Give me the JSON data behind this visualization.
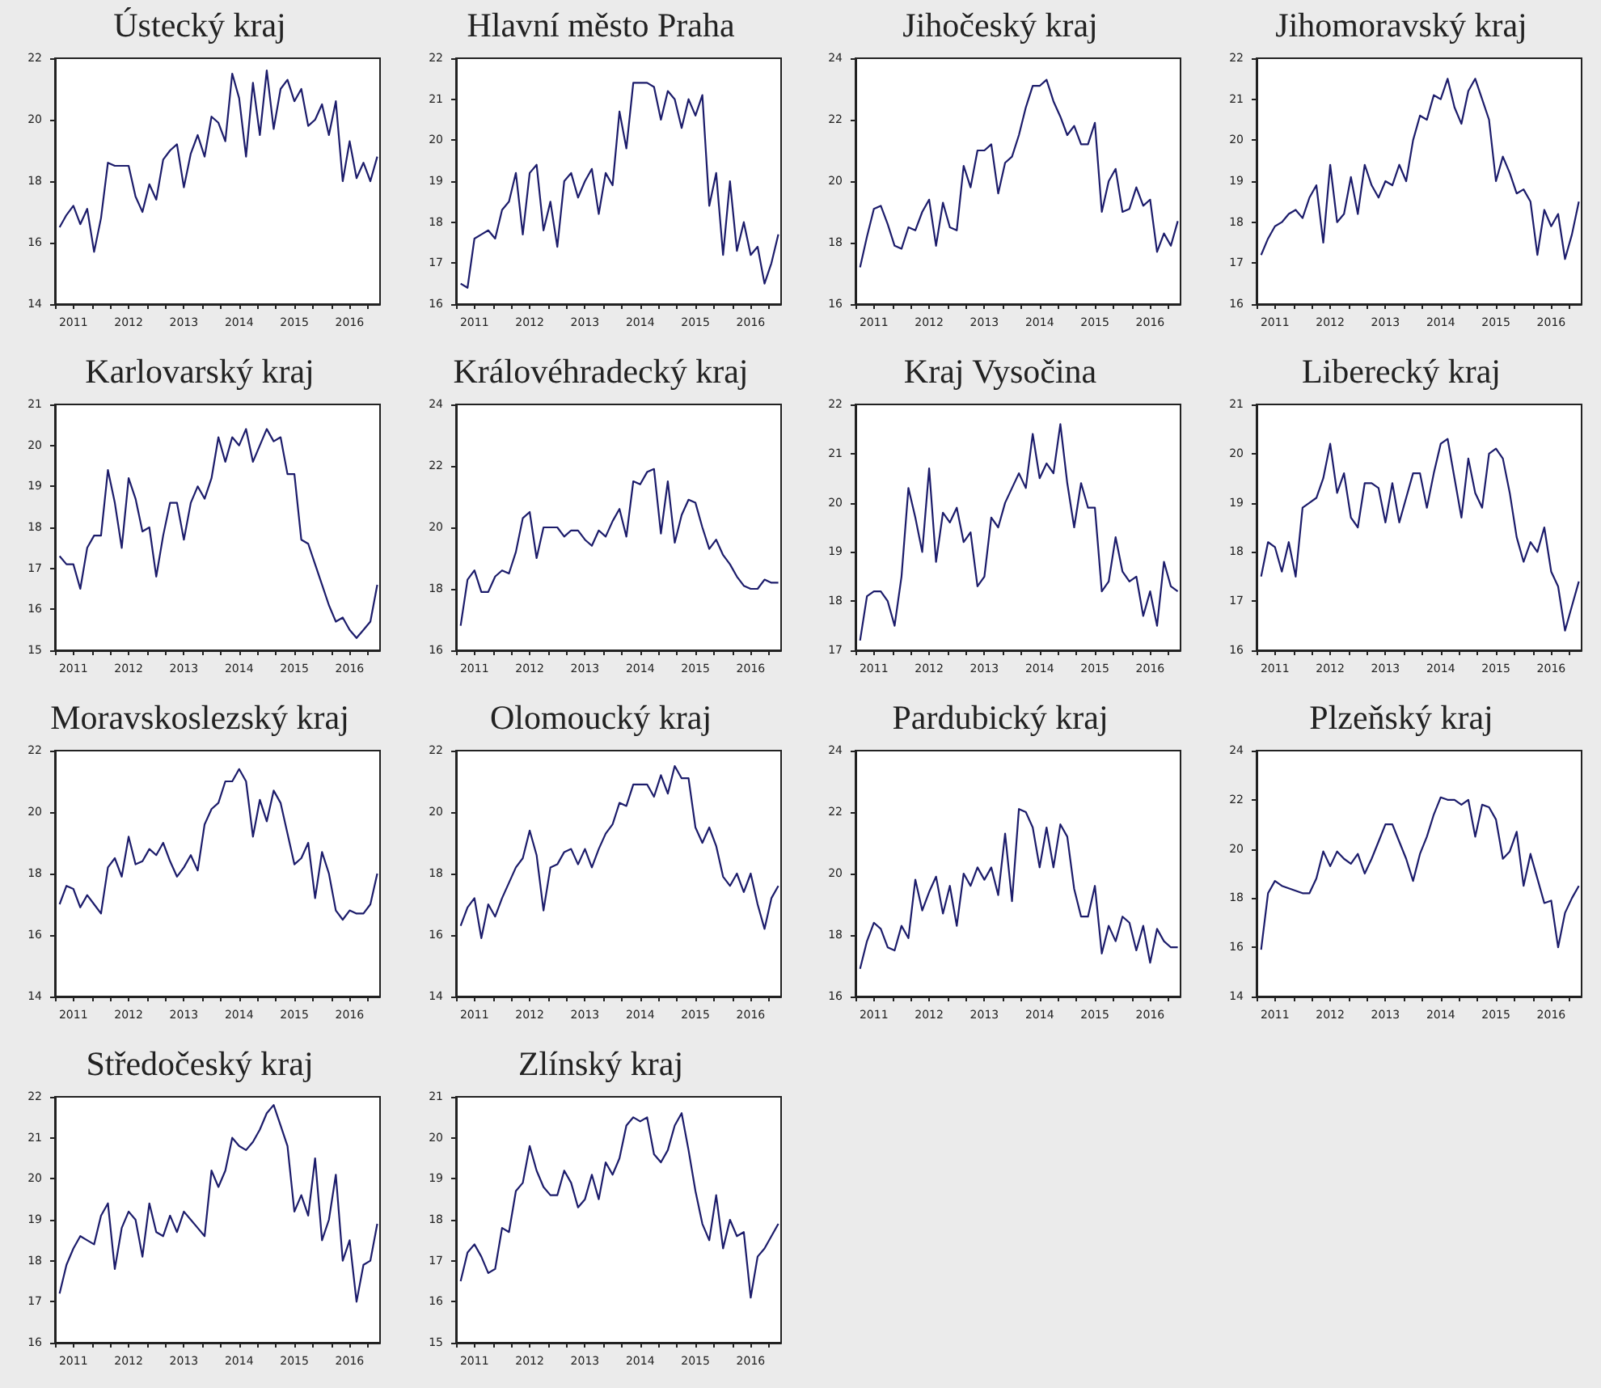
{
  "chart_data": [
    {
      "type": "line",
      "title": "Ústecký kraj",
      "color": "#1c1c6b",
      "xlim": [
        2010.667,
        2016.55
      ],
      "ylim": [
        14,
        22
      ],
      "yticks": [
        14,
        16,
        18,
        20,
        22
      ],
      "xticks": [
        {
          "value": 2010.667,
          "label": null
        },
        2011,
        {
          "value": 2011.333,
          "label": null
        },
        {
          "value": 2011.667,
          "label": null
        },
        2012,
        {
          "value": 2012.333,
          "label": null
        },
        {
          "value": 2012.667,
          "label": null
        },
        2013,
        {
          "value": 2013.333,
          "label": null
        },
        {
          "value": 2013.667,
          "label": null
        },
        2014,
        {
          "value": 2014.333,
          "label": null
        },
        {
          "value": 2014.667,
          "label": null
        },
        2015,
        {
          "value": 2015.333,
          "label": null
        },
        {
          "value": 2015.667,
          "label": null
        },
        2016,
        {
          "value": 2016.333,
          "label": null
        }
      ],
      "x": [
        2010.75,
        2010.875,
        2011,
        2011.125,
        2011.25,
        2011.375,
        2011.5,
        2011.625,
        2011.75,
        2011.875,
        2012,
        2012.125,
        2012.25,
        2012.375,
        2012.5,
        2012.625,
        2012.75,
        2012.875,
        2013,
        2013.125,
        2013.25,
        2013.375,
        2013.5,
        2013.625,
        2013.75,
        2013.875,
        2014,
        2014.125,
        2014.25,
        2014.375,
        2014.5,
        2014.625,
        2014.75,
        2014.875,
        2015,
        2015.125,
        2015.25,
        2015.375,
        2015.5,
        2015.625,
        2015.75,
        2015.875,
        2016,
        2016.125,
        2016.25,
        2016.375,
        2016.5
      ],
      "values": [
        16.5,
        16.9,
        17.2,
        16.6,
        17.1,
        15.7,
        16.8,
        18.6,
        18.5,
        18.5,
        18.5,
        17.5,
        17.0,
        17.9,
        17.4,
        18.7,
        19.0,
        19.2,
        17.8,
        18.9,
        19.5,
        18.8,
        20.1,
        19.9,
        19.3,
        21.5,
        20.7,
        18.8,
        21.2,
        19.5,
        21.6,
        19.7,
        21.0,
        21.3,
        20.6,
        21.0,
        19.8,
        20.0,
        20.5,
        19.5,
        20.6,
        18.0,
        19.3,
        18.1,
        18.6,
        18.0,
        18.8
      ]
    },
    {
      "type": "line",
      "title": "Hlavní město Praha",
      "color": "#1c1c6b",
      "xlim": [
        2010.667,
        2016.55
      ],
      "ylim": [
        16,
        22
      ],
      "yticks": [
        16,
        17,
        18,
        19,
        20,
        21,
        22
      ],
      "xticks": [
        {
          "value": 2010.667,
          "label": null
        },
        2011,
        {
          "value": 2011.333,
          "label": null
        },
        {
          "value": 2011.667,
          "label": null
        },
        2012,
        {
          "value": 2012.333,
          "label": null
        },
        {
          "value": 2012.667,
          "label": null
        },
        2013,
        {
          "value": 2013.333,
          "label": null
        },
        {
          "value": 2013.667,
          "label": null
        },
        2014,
        {
          "value": 2014.333,
          "label": null
        },
        {
          "value": 2014.667,
          "label": null
        },
        2015,
        {
          "value": 2015.333,
          "label": null
        },
        {
          "value": 2015.667,
          "label": null
        },
        2016,
        {
          "value": 2016.333,
          "label": null
        }
      ],
      "x": [
        2010.75,
        2010.875,
        2011,
        2011.125,
        2011.25,
        2011.375,
        2011.5,
        2011.625,
        2011.75,
        2011.875,
        2012,
        2012.125,
        2012.25,
        2012.375,
        2012.5,
        2012.625,
        2012.75,
        2012.875,
        2013,
        2013.125,
        2013.25,
        2013.375,
        2013.5,
        2013.625,
        2013.75,
        2013.875,
        2014,
        2014.125,
        2014.25,
        2014.375,
        2014.5,
        2014.625,
        2014.75,
        2014.875,
        2015,
        2015.125,
        2015.25,
        2015.375,
        2015.5,
        2015.625,
        2015.75,
        2015.875,
        2016,
        2016.125,
        2016.25,
        2016.375,
        2016.5
      ],
      "values": [
        16.5,
        16.4,
        17.6,
        17.7,
        17.8,
        17.6,
        18.3,
        18.5,
        19.2,
        17.7,
        19.2,
        19.4,
        17.8,
        18.5,
        17.4,
        19.0,
        19.2,
        18.6,
        19.0,
        19.3,
        18.2,
        19.2,
        18.9,
        20.7,
        19.8,
        21.4,
        21.4,
        21.4,
        21.3,
        20.5,
        21.2,
        21.0,
        20.3,
        21.0,
        20.6,
        21.1,
        18.4,
        19.2,
        17.2,
        19.0,
        17.3,
        18.0,
        17.2,
        17.4,
        16.5,
        17.0,
        17.7
      ]
    },
    {
      "type": "line",
      "title": "Jihočeský kraj",
      "color": "#1c1c6b",
      "xlim": [
        2010.667,
        2016.55
      ],
      "ylim": [
        16,
        24
      ],
      "yticks": [
        16,
        18,
        20,
        22,
        24
      ],
      "xticks": [
        {
          "value": 2010.667,
          "label": null
        },
        2011,
        {
          "value": 2011.333,
          "label": null
        },
        {
          "value": 2011.667,
          "label": null
        },
        2012,
        {
          "value": 2012.333,
          "label": null
        },
        {
          "value": 2012.667,
          "label": null
        },
        2013,
        {
          "value": 2013.333,
          "label": null
        },
        {
          "value": 2013.667,
          "label": null
        },
        2014,
        {
          "value": 2014.333,
          "label": null
        },
        {
          "value": 2014.667,
          "label": null
        },
        2015,
        {
          "value": 2015.333,
          "label": null
        },
        {
          "value": 2015.667,
          "label": null
        },
        2016,
        {
          "value": 2016.333,
          "label": null
        }
      ],
      "x": [
        2010.75,
        2010.875,
        2011,
        2011.125,
        2011.25,
        2011.375,
        2011.5,
        2011.625,
        2011.75,
        2011.875,
        2012,
        2012.125,
        2012.25,
        2012.375,
        2012.5,
        2012.625,
        2012.75,
        2012.875,
        2013,
        2013.125,
        2013.25,
        2013.375,
        2013.5,
        2013.625,
        2013.75,
        2013.875,
        2014,
        2014.125,
        2014.25,
        2014.375,
        2014.5,
        2014.625,
        2014.75,
        2014.875,
        2015,
        2015.125,
        2015.25,
        2015.375,
        2015.5,
        2015.625,
        2015.75,
        2015.875,
        2016,
        2016.125,
        2016.25,
        2016.375,
        2016.5
      ],
      "values": [
        17.2,
        18.2,
        19.1,
        19.2,
        18.6,
        17.9,
        17.8,
        18.5,
        18.4,
        19.0,
        19.4,
        17.9,
        19.3,
        18.5,
        18.4,
        20.5,
        19.8,
        21.0,
        21.0,
        21.2,
        19.6,
        20.6,
        20.8,
        21.5,
        22.4,
        23.1,
        23.1,
        23.3,
        22.6,
        22.1,
        21.5,
        21.8,
        21.2,
        21.2,
        21.9,
        19.0,
        20.0,
        20.4,
        19.0,
        19.1,
        19.8,
        19.2,
        19.4,
        17.7,
        18.3,
        17.9,
        18.7
      ]
    },
    {
      "type": "line",
      "title": "Jihomoravský kraj",
      "color": "#1c1c6b",
      "xlim": [
        2010.667,
        2016.55
      ],
      "ylim": [
        16,
        22
      ],
      "yticks": [
        16,
        17,
        18,
        19,
        20,
        21,
        22
      ],
      "xticks": [
        {
          "value": 2010.667,
          "label": null
        },
        2011,
        {
          "value": 2011.333,
          "label": null
        },
        {
          "value": 2011.667,
          "label": null
        },
        2012,
        {
          "value": 2012.333,
          "label": null
        },
        {
          "value": 2012.667,
          "label": null
        },
        2013,
        {
          "value": 2013.333,
          "label": null
        },
        {
          "value": 2013.667,
          "label": null
        },
        2014,
        {
          "value": 2014.333,
          "label": null
        },
        {
          "value": 2014.667,
          "label": null
        },
        2015,
        {
          "value": 2015.333,
          "label": null
        },
        {
          "value": 2015.667,
          "label": null
        },
        2016,
        {
          "value": 2016.333,
          "label": null
        }
      ],
      "x": [
        2010.75,
        2010.875,
        2011,
        2011.125,
        2011.25,
        2011.375,
        2011.5,
        2011.625,
        2011.75,
        2011.875,
        2012,
        2012.125,
        2012.25,
        2012.375,
        2012.5,
        2012.625,
        2012.75,
        2012.875,
        2013,
        2013.125,
        2013.25,
        2013.375,
        2013.5,
        2013.625,
        2013.75,
        2013.875,
        2014,
        2014.125,
        2014.25,
        2014.375,
        2014.5,
        2014.625,
        2014.75,
        2014.875,
        2015,
        2015.125,
        2015.25,
        2015.375,
        2015.5,
        2015.625,
        2015.75,
        2015.875,
        2016,
        2016.125,
        2016.25,
        2016.375,
        2016.5
      ],
      "values": [
        17.2,
        17.6,
        17.9,
        18.0,
        18.2,
        18.3,
        18.1,
        18.6,
        18.9,
        17.5,
        19.4,
        18.0,
        18.2,
        19.1,
        18.2,
        19.4,
        18.9,
        18.6,
        19.0,
        18.9,
        19.4,
        19.0,
        20.0,
        20.6,
        20.5,
        21.1,
        21.0,
        21.5,
        20.8,
        20.4,
        21.2,
        21.5,
        21.0,
        20.5,
        19.0,
        19.6,
        19.2,
        18.7,
        18.8,
        18.5,
        17.2,
        18.3,
        17.9,
        18.2,
        17.1,
        17.7,
        18.5
      ]
    },
    {
      "type": "line",
      "title": "Karlovarský kraj",
      "color": "#1c1c6b",
      "xlim": [
        2010.667,
        2016.55
      ],
      "ylim": [
        15,
        21
      ],
      "yticks": [
        15,
        16,
        17,
        18,
        19,
        20,
        21
      ],
      "xticks": [
        {
          "value": 2010.667,
          "label": null
        },
        2011,
        {
          "value": 2011.333,
          "label": null
        },
        {
          "value": 2011.667,
          "label": null
        },
        2012,
        {
          "value": 2012.333,
          "label": null
        },
        {
          "value": 2012.667,
          "label": null
        },
        2013,
        {
          "value": 2013.333,
          "label": null
        },
        {
          "value": 2013.667,
          "label": null
        },
        2014,
        {
          "value": 2014.333,
          "label": null
        },
        {
          "value": 2014.667,
          "label": null
        },
        2015,
        {
          "value": 2015.333,
          "label": null
        },
        {
          "value": 2015.667,
          "label": null
        },
        2016,
        {
          "value": 2016.333,
          "label": null
        }
      ],
      "x": [
        2010.75,
        2010.875,
        2011,
        2011.125,
        2011.25,
        2011.375,
        2011.5,
        2011.625,
        2011.75,
        2011.875,
        2012,
        2012.125,
        2012.25,
        2012.375,
        2012.5,
        2012.625,
        2012.75,
        2012.875,
        2013,
        2013.125,
        2013.25,
        2013.375,
        2013.5,
        2013.625,
        2013.75,
        2013.875,
        2014,
        2014.125,
        2014.25,
        2014.375,
        2014.5,
        2014.625,
        2014.75,
        2014.875,
        2015,
        2015.125,
        2015.25,
        2015.375,
        2015.5,
        2015.625,
        2015.75,
        2015.875,
        2016,
        2016.125,
        2016.25,
        2016.375,
        2016.5
      ],
      "values": [
        17.3,
        17.1,
        17.1,
        16.5,
        17.5,
        17.8,
        17.8,
        19.4,
        18.6,
        17.5,
        19.2,
        18.7,
        17.9,
        18.0,
        16.8,
        17.8,
        18.6,
        18.6,
        17.7,
        18.6,
        19.0,
        18.7,
        19.2,
        20.2,
        19.6,
        20.2,
        20.0,
        20.4,
        19.6,
        20.0,
        20.4,
        20.1,
        20.2,
        19.3,
        19.3,
        17.7,
        17.6,
        17.1,
        16.6,
        16.1,
        15.7,
        15.8,
        15.5,
        15.3,
        15.5,
        15.7,
        16.6
      ]
    },
    {
      "type": "line",
      "title": "Královéhradecký kraj",
      "color": "#1c1c6b",
      "xlim": [
        2010.667,
        2016.55
      ],
      "ylim": [
        16,
        24
      ],
      "yticks": [
        16,
        18,
        20,
        22,
        24
      ],
      "xticks": [
        {
          "value": 2010.667,
          "label": null
        },
        2011,
        {
          "value": 2011.333,
          "label": null
        },
        {
          "value": 2011.667,
          "label": null
        },
        2012,
        {
          "value": 2012.333,
          "label": null
        },
        {
          "value": 2012.667,
          "label": null
        },
        2013,
        {
          "value": 2013.333,
          "label": null
        },
        {
          "value": 2013.667,
          "label": null
        },
        2014,
        {
          "value": 2014.333,
          "label": null
        },
        {
          "value": 2014.667,
          "label": null
        },
        2015,
        {
          "value": 2015.333,
          "label": null
        },
        {
          "value": 2015.667,
          "label": null
        },
        2016,
        {
          "value": 2016.333,
          "label": null
        }
      ],
      "x": [
        2010.75,
        2010.875,
        2011,
        2011.125,
        2011.25,
        2011.375,
        2011.5,
        2011.625,
        2011.75,
        2011.875,
        2012,
        2012.125,
        2012.25,
        2012.375,
        2012.5,
        2012.625,
        2012.75,
        2012.875,
        2013,
        2013.125,
        2013.25,
        2013.375,
        2013.5,
        2013.625,
        2013.75,
        2013.875,
        2014,
        2014.125,
        2014.25,
        2014.375,
        2014.5,
        2014.625,
        2014.75,
        2014.875,
        2015,
        2015.125,
        2015.25,
        2015.375,
        2015.5,
        2015.625,
        2015.75,
        2015.875,
        2016,
        2016.125,
        2016.25,
        2016.375,
        2016.5
      ],
      "values": [
        16.8,
        18.3,
        18.6,
        17.9,
        17.9,
        18.4,
        18.6,
        18.5,
        19.2,
        20.3,
        20.5,
        19.0,
        20.0,
        20.0,
        20.0,
        19.7,
        19.9,
        19.9,
        19.6,
        19.4,
        19.9,
        19.7,
        20.2,
        20.6,
        19.7,
        21.5,
        21.4,
        21.8,
        21.9,
        19.8,
        21.5,
        19.5,
        20.4,
        20.9,
        20.8,
        20.0,
        19.3,
        19.6,
        19.1,
        18.8,
        18.4,
        18.1,
        18.0,
        18.0,
        18.3,
        18.2,
        18.2
      ]
    },
    {
      "type": "line",
      "title": "Kraj Vysočina",
      "color": "#1c1c6b",
      "xlim": [
        2010.667,
        2016.55
      ],
      "ylim": [
        17,
        22
      ],
      "yticks": [
        17,
        18,
        19,
        20,
        21,
        22
      ],
      "xticks": [
        {
          "value": 2010.667,
          "label": null
        },
        2011,
        {
          "value": 2011.333,
          "label": null
        },
        {
          "value": 2011.667,
          "label": null
        },
        2012,
        {
          "value": 2012.333,
          "label": null
        },
        {
          "value": 2012.667,
          "label": null
        },
        2013,
        {
          "value": 2013.333,
          "label": null
        },
        {
          "value": 2013.667,
          "label": null
        },
        2014,
        {
          "value": 2014.333,
          "label": null
        },
        {
          "value": 2014.667,
          "label": null
        },
        2015,
        {
          "value": 2015.333,
          "label": null
        },
        {
          "value": 2015.667,
          "label": null
        },
        2016,
        {
          "value": 2016.333,
          "label": null
        }
      ],
      "x": [
        2010.75,
        2010.875,
        2011,
        2011.125,
        2011.25,
        2011.375,
        2011.5,
        2011.625,
        2011.75,
        2011.875,
        2012,
        2012.125,
        2012.25,
        2012.375,
        2012.5,
        2012.625,
        2012.75,
        2012.875,
        2013,
        2013.125,
        2013.25,
        2013.375,
        2013.5,
        2013.625,
        2013.75,
        2013.875,
        2014,
        2014.125,
        2014.25,
        2014.375,
        2014.5,
        2014.625,
        2014.75,
        2014.875,
        2015,
        2015.125,
        2015.25,
        2015.375,
        2015.5,
        2015.625,
        2015.75,
        2015.875,
        2016,
        2016.125,
        2016.25,
        2016.375,
        2016.5
      ],
      "values": [
        17.2,
        18.1,
        18.2,
        18.2,
        18.0,
        17.5,
        18.5,
        20.3,
        19.7,
        19.0,
        20.7,
        18.8,
        19.8,
        19.6,
        19.9,
        19.2,
        19.4,
        18.3,
        18.5,
        19.7,
        19.5,
        20.0,
        20.3,
        20.6,
        20.3,
        21.4,
        20.5,
        20.8,
        20.6,
        21.6,
        20.4,
        19.5,
        20.4,
        19.9,
        19.9,
        18.2,
        18.4,
        19.3,
        18.6,
        18.4,
        18.5,
        17.7,
        18.2,
        17.5,
        18.8,
        18.3,
        18.2
      ]
    },
    {
      "type": "line",
      "title": "Liberecký kraj",
      "color": "#1c1c6b",
      "xlim": [
        2010.667,
        2016.55
      ],
      "ylim": [
        16,
        21
      ],
      "yticks": [
        16,
        17,
        18,
        19,
        20,
        21
      ],
      "xticks": [
        {
          "value": 2010.667,
          "label": null
        },
        2011,
        {
          "value": 2011.333,
          "label": null
        },
        {
          "value": 2011.667,
          "label": null
        },
        2012,
        {
          "value": 2012.333,
          "label": null
        },
        {
          "value": 2012.667,
          "label": null
        },
        2013,
        {
          "value": 2013.333,
          "label": null
        },
        {
          "value": 2013.667,
          "label": null
        },
        2014,
        {
          "value": 2014.333,
          "label": null
        },
        {
          "value": 2014.667,
          "label": null
        },
        2015,
        {
          "value": 2015.333,
          "label": null
        },
        {
          "value": 2015.667,
          "label": null
        },
        2016,
        {
          "value": 2016.333,
          "label": null
        }
      ],
      "x": [
        2010.75,
        2010.875,
        2011,
        2011.125,
        2011.25,
        2011.375,
        2011.5,
        2011.625,
        2011.75,
        2011.875,
        2012,
        2012.125,
        2012.25,
        2012.375,
        2012.5,
        2012.625,
        2012.75,
        2012.875,
        2013,
        2013.125,
        2013.25,
        2013.375,
        2013.5,
        2013.625,
        2013.75,
        2013.875,
        2014,
        2014.125,
        2014.25,
        2014.375,
        2014.5,
        2014.625,
        2014.75,
        2014.875,
        2015,
        2015.125,
        2015.25,
        2015.375,
        2015.5,
        2015.625,
        2015.75,
        2015.875,
        2016,
        2016.125,
        2016.25,
        2016.375,
        2016.5
      ],
      "values": [
        17.5,
        18.2,
        18.1,
        17.6,
        18.2,
        17.5,
        18.9,
        19.0,
        19.1,
        19.5,
        20.2,
        19.2,
        19.6,
        18.7,
        18.5,
        19.4,
        19.4,
        19.3,
        18.6,
        19.4,
        18.6,
        19.1,
        19.6,
        19.6,
        18.9,
        19.6,
        20.2,
        20.3,
        19.5,
        18.7,
        19.9,
        19.2,
        18.9,
        20.0,
        20.1,
        19.9,
        19.2,
        18.3,
        17.8,
        18.2,
        18.0,
        18.5,
        17.6,
        17.3,
        16.4,
        16.9,
        17.4
      ]
    },
    {
      "type": "line",
      "title": "Moravskoslezský kraj",
      "color": "#1c1c6b",
      "xlim": [
        2010.667,
        2016.55
      ],
      "ylim": [
        14,
        22
      ],
      "yticks": [
        14,
        16,
        18,
        20,
        22
      ],
      "xticks": [
        {
          "value": 2010.667,
          "label": null
        },
        2011,
        {
          "value": 2011.333,
          "label": null
        },
        {
          "value": 2011.667,
          "label": null
        },
        2012,
        {
          "value": 2012.333,
          "label": null
        },
        {
          "value": 2012.667,
          "label": null
        },
        2013,
        {
          "value": 2013.333,
          "label": null
        },
        {
          "value": 2013.667,
          "label": null
        },
        2014,
        {
          "value": 2014.333,
          "label": null
        },
        {
          "value": 2014.667,
          "label": null
        },
        2015,
        {
          "value": 2015.333,
          "label": null
        },
        {
          "value": 2015.667,
          "label": null
        },
        2016,
        {
          "value": 2016.333,
          "label": null
        }
      ],
      "x": [
        2010.75,
        2010.875,
        2011,
        2011.125,
        2011.25,
        2011.375,
        2011.5,
        2011.625,
        2011.75,
        2011.875,
        2012,
        2012.125,
        2012.25,
        2012.375,
        2012.5,
        2012.625,
        2012.75,
        2012.875,
        2013,
        2013.125,
        2013.25,
        2013.375,
        2013.5,
        2013.625,
        2013.75,
        2013.875,
        2014,
        2014.125,
        2014.25,
        2014.375,
        2014.5,
        2014.625,
        2014.75,
        2014.875,
        2015,
        2015.125,
        2015.25,
        2015.375,
        2015.5,
        2015.625,
        2015.75,
        2015.875,
        2016,
        2016.125,
        2016.25,
        2016.375,
        2016.5
      ],
      "values": [
        17.0,
        17.6,
        17.5,
        16.9,
        17.3,
        17.0,
        16.7,
        18.2,
        18.5,
        17.9,
        19.2,
        18.3,
        18.4,
        18.8,
        18.6,
        19.0,
        18.4,
        17.9,
        18.2,
        18.6,
        18.1,
        19.6,
        20.1,
        20.3,
        21.0,
        21.0,
        21.4,
        21.0,
        19.2,
        20.4,
        19.7,
        20.7,
        20.3,
        19.3,
        18.3,
        18.5,
        19.0,
        17.2,
        18.7,
        18.0,
        16.8,
        16.5,
        16.8,
        16.7,
        16.7,
        17.0,
        18.0
      ]
    },
    {
      "type": "line",
      "title": "Olomoucký kraj",
      "color": "#1c1c6b",
      "xlim": [
        2010.667,
        2016.55
      ],
      "ylim": [
        14,
        22
      ],
      "yticks": [
        14,
        16,
        18,
        20,
        22
      ],
      "xticks": [
        {
          "value": 2010.667,
          "label": null
        },
        2011,
        {
          "value": 2011.333,
          "label": null
        },
        {
          "value": 2011.667,
          "label": null
        },
        2012,
        {
          "value": 2012.333,
          "label": null
        },
        {
          "value": 2012.667,
          "label": null
        },
        2013,
        {
          "value": 2013.333,
          "label": null
        },
        {
          "value": 2013.667,
          "label": null
        },
        2014,
        {
          "value": 2014.333,
          "label": null
        },
        {
          "value": 2014.667,
          "label": null
        },
        2015,
        {
          "value": 2015.333,
          "label": null
        },
        {
          "value": 2015.667,
          "label": null
        },
        2016,
        {
          "value": 2016.333,
          "label": null
        }
      ],
      "x": [
        2010.75,
        2010.875,
        2011,
        2011.125,
        2011.25,
        2011.375,
        2011.5,
        2011.625,
        2011.75,
        2011.875,
        2012,
        2012.125,
        2012.25,
        2012.375,
        2012.5,
        2012.625,
        2012.75,
        2012.875,
        2013,
        2013.125,
        2013.25,
        2013.375,
        2013.5,
        2013.625,
        2013.75,
        2013.875,
        2014,
        2014.125,
        2014.25,
        2014.375,
        2014.5,
        2014.625,
        2014.75,
        2014.875,
        2015,
        2015.125,
        2015.25,
        2015.375,
        2015.5,
        2015.625,
        2015.75,
        2015.875,
        2016,
        2016.125,
        2016.25,
        2016.375,
        2016.5
      ],
      "values": [
        16.3,
        16.9,
        17.2,
        15.9,
        17.0,
        16.6,
        17.2,
        17.7,
        18.2,
        18.5,
        19.4,
        18.6,
        16.8,
        18.2,
        18.3,
        18.7,
        18.8,
        18.3,
        18.8,
        18.2,
        18.8,
        19.3,
        19.6,
        20.3,
        20.2,
        20.9,
        20.9,
        20.9,
        20.5,
        21.2,
        20.6,
        21.5,
        21.1,
        21.1,
        19.5,
        19.0,
        19.5,
        18.9,
        17.9,
        17.6,
        18.0,
        17.4,
        18.0,
        17.0,
        16.2,
        17.2,
        17.6
      ]
    },
    {
      "type": "line",
      "title": "Pardubický kraj",
      "color": "#1c1c6b",
      "xlim": [
        2010.667,
        2016.55
      ],
      "ylim": [
        16,
        24
      ],
      "yticks": [
        16,
        18,
        20,
        22,
        24
      ],
      "xticks": [
        {
          "value": 2010.667,
          "label": null
        },
        2011,
        {
          "value": 2011.333,
          "label": null
        },
        {
          "value": 2011.667,
          "label": null
        },
        2012,
        {
          "value": 2012.333,
          "label": null
        },
        {
          "value": 2012.667,
          "label": null
        },
        2013,
        {
          "value": 2013.333,
          "label": null
        },
        {
          "value": 2013.667,
          "label": null
        },
        2014,
        {
          "value": 2014.333,
          "label": null
        },
        {
          "value": 2014.667,
          "label": null
        },
        2015,
        {
          "value": 2015.333,
          "label": null
        },
        {
          "value": 2015.667,
          "label": null
        },
        2016,
        {
          "value": 2016.333,
          "label": null
        }
      ],
      "x": [
        2010.75,
        2010.875,
        2011,
        2011.125,
        2011.25,
        2011.375,
        2011.5,
        2011.625,
        2011.75,
        2011.875,
        2012,
        2012.125,
        2012.25,
        2012.375,
        2012.5,
        2012.625,
        2012.75,
        2012.875,
        2013,
        2013.125,
        2013.25,
        2013.375,
        2013.5,
        2013.625,
        2013.75,
        2013.875,
        2014,
        2014.125,
        2014.25,
        2014.375,
        2014.5,
        2014.625,
        2014.75,
        2014.875,
        2015,
        2015.125,
        2015.25,
        2015.375,
        2015.5,
        2015.625,
        2015.75,
        2015.875,
        2016,
        2016.125,
        2016.25,
        2016.375,
        2016.5
      ],
      "values": [
        16.9,
        17.8,
        18.4,
        18.2,
        17.6,
        17.5,
        18.3,
        17.9,
        19.8,
        18.8,
        19.4,
        19.9,
        18.7,
        19.6,
        18.3,
        20.0,
        19.6,
        20.2,
        19.8,
        20.2,
        19.3,
        21.3,
        19.1,
        22.1,
        22.0,
        21.5,
        20.2,
        21.5,
        20.2,
        21.6,
        21.2,
        19.5,
        18.6,
        18.6,
        19.6,
        17.4,
        18.3,
        17.8,
        18.6,
        18.4,
        17.5,
        18.3,
        17.1,
        18.2,
        17.8,
        17.6,
        17.6
      ]
    },
    {
      "type": "line",
      "title": "Plzeňský kraj",
      "color": "#1c1c6b",
      "xlim": [
        2010.667,
        2016.55
      ],
      "ylim": [
        14,
        24
      ],
      "yticks": [
        14,
        16,
        18,
        20,
        22,
        24
      ],
      "xticks": [
        {
          "value": 2010.667,
          "label": null
        },
        2011,
        {
          "value": 2011.333,
          "label": null
        },
        {
          "value": 2011.667,
          "label": null
        },
        2012,
        {
          "value": 2012.333,
          "label": null
        },
        {
          "value": 2012.667,
          "label": null
        },
        2013,
        {
          "value": 2013.333,
          "label": null
        },
        {
          "value": 2013.667,
          "label": null
        },
        2014,
        {
          "value": 2014.333,
          "label": null
        },
        {
          "value": 2014.667,
          "label": null
        },
        2015,
        {
          "value": 2015.333,
          "label": null
        },
        {
          "value": 2015.667,
          "label": null
        },
        2016,
        {
          "value": 2016.333,
          "label": null
        }
      ],
      "x": [
        2010.75,
        2010.875,
        2011,
        2011.125,
        2011.25,
        2011.375,
        2011.5,
        2011.625,
        2011.75,
        2011.875,
        2012,
        2012.125,
        2012.25,
        2012.375,
        2012.5,
        2012.625,
        2012.75,
        2012.875,
        2013,
        2013.125,
        2013.25,
        2013.375,
        2013.5,
        2013.625,
        2013.75,
        2013.875,
        2014,
        2014.125,
        2014.25,
        2014.375,
        2014.5,
        2014.625,
        2014.75,
        2014.875,
        2015,
        2015.125,
        2015.25,
        2015.375,
        2015.5,
        2015.625,
        2015.75,
        2015.875,
        2016,
        2016.125,
        2016.25,
        2016.375,
        2016.5
      ],
      "values": [
        15.9,
        18.2,
        18.7,
        18.5,
        18.4,
        18.3,
        18.2,
        18.2,
        18.8,
        19.9,
        19.3,
        19.9,
        19.6,
        19.4,
        19.8,
        19.0,
        19.6,
        20.3,
        21.0,
        21.0,
        20.3,
        19.6,
        18.7,
        19.8,
        20.5,
        21.4,
        22.1,
        22.0,
        22.0,
        21.8,
        22.0,
        20.5,
        21.8,
        21.7,
        21.2,
        19.6,
        19.9,
        20.7,
        18.5,
        19.8,
        18.8,
        17.8,
        17.9,
        16.0,
        17.4,
        18.0,
        18.5
      ]
    },
    {
      "type": "line",
      "title": "Středočeský kraj",
      "color": "#1c1c6b",
      "xlim": [
        2010.667,
        2016.55
      ],
      "ylim": [
        16,
        22
      ],
      "yticks": [
        16,
        17,
        18,
        19,
        20,
        21,
        22
      ],
      "xticks": [
        {
          "value": 2010.667,
          "label": null
        },
        2011,
        {
          "value": 2011.333,
          "label": null
        },
        {
          "value": 2011.667,
          "label": null
        },
        2012,
        {
          "value": 2012.333,
          "label": null
        },
        {
          "value": 2012.667,
          "label": null
        },
        2013,
        {
          "value": 2013.333,
          "label": null
        },
        {
          "value": 2013.667,
          "label": null
        },
        2014,
        {
          "value": 2014.333,
          "label": null
        },
        {
          "value": 2014.667,
          "label": null
        },
        2015,
        {
          "value": 2015.333,
          "label": null
        },
        {
          "value": 2015.667,
          "label": null
        },
        2016,
        {
          "value": 2016.333,
          "label": null
        }
      ],
      "x": [
        2010.75,
        2010.875,
        2011,
        2011.125,
        2011.25,
        2011.375,
        2011.5,
        2011.625,
        2011.75,
        2011.875,
        2012,
        2012.125,
        2012.25,
        2012.375,
        2012.5,
        2012.625,
        2012.75,
        2012.875,
        2013,
        2013.125,
        2013.25,
        2013.375,
        2013.5,
        2013.625,
        2013.75,
        2013.875,
        2014,
        2014.125,
        2014.25,
        2014.375,
        2014.5,
        2014.625,
        2014.75,
        2014.875,
        2015,
        2015.125,
        2015.25,
        2015.375,
        2015.5,
        2015.625,
        2015.75,
        2015.875,
        2016,
        2016.125,
        2016.25,
        2016.375,
        2016.5
      ],
      "values": [
        17.2,
        17.9,
        18.3,
        18.6,
        18.5,
        18.4,
        19.1,
        19.4,
        17.8,
        18.8,
        19.2,
        19.0,
        18.1,
        19.4,
        18.7,
        18.6,
        19.1,
        18.7,
        19.2,
        19.0,
        18.8,
        18.6,
        20.2,
        19.8,
        20.2,
        21.0,
        20.8,
        20.7,
        20.9,
        21.2,
        21.6,
        21.8,
        21.3,
        20.8,
        19.2,
        19.6,
        19.1,
        20.5,
        18.5,
        19.0,
        20.1,
        18.0,
        18.5,
        17.0,
        17.9,
        18.0,
        18.9
      ]
    },
    {
      "type": "line",
      "title": "Zlínský kraj",
      "color": "#1c1c6b",
      "xlim": [
        2010.667,
        2016.55
      ],
      "ylim": [
        15,
        21
      ],
      "yticks": [
        15,
        16,
        17,
        18,
        19,
        20,
        21
      ],
      "xticks": [
        {
          "value": 2010.667,
          "label": null
        },
        2011,
        {
          "value": 2011.333,
          "label": null
        },
        {
          "value": 2011.667,
          "label": null
        },
        2012,
        {
          "value": 2012.333,
          "label": null
        },
        {
          "value": 2012.667,
          "label": null
        },
        2013,
        {
          "value": 2013.333,
          "label": null
        },
        {
          "value": 2013.667,
          "label": null
        },
        2014,
        {
          "value": 2014.333,
          "label": null
        },
        {
          "value": 2014.667,
          "label": null
        },
        2015,
        {
          "value": 2015.333,
          "label": null
        },
        {
          "value": 2015.667,
          "label": null
        },
        2016,
        {
          "value": 2016.333,
          "label": null
        }
      ],
      "x": [
        2010.75,
        2010.875,
        2011,
        2011.125,
        2011.25,
        2011.375,
        2011.5,
        2011.625,
        2011.75,
        2011.875,
        2012,
        2012.125,
        2012.25,
        2012.375,
        2012.5,
        2012.625,
        2012.75,
        2012.875,
        2013,
        2013.125,
        2013.25,
        2013.375,
        2013.5,
        2013.625,
        2013.75,
        2013.875,
        2014,
        2014.125,
        2014.25,
        2014.375,
        2014.5,
        2014.625,
        2014.75,
        2014.875,
        2015,
        2015.125,
        2015.25,
        2015.375,
        2015.5,
        2015.625,
        2015.75,
        2015.875,
        2016,
        2016.125,
        2016.25,
        2016.375,
        2016.5
      ],
      "values": [
        16.5,
        17.2,
        17.4,
        17.1,
        16.7,
        16.8,
        17.8,
        17.7,
        18.7,
        18.9,
        19.8,
        19.2,
        18.8,
        18.6,
        18.6,
        19.2,
        18.9,
        18.3,
        18.5,
        19.1,
        18.5,
        19.4,
        19.1,
        19.5,
        20.3,
        20.5,
        20.4,
        20.5,
        19.6,
        19.4,
        19.7,
        20.3,
        20.6,
        19.7,
        18.7,
        17.9,
        17.5,
        18.6,
        17.3,
        18.0,
        17.6,
        17.7,
        16.1,
        17.1,
        17.3,
        17.6,
        17.9
      ]
    }
  ]
}
